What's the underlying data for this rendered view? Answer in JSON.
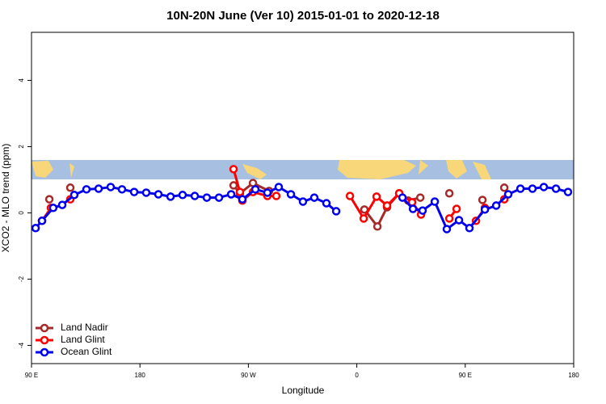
{
  "chart_data": {
    "type": "line",
    "title": "10N-20N June (Ver 10)   2015-01-01 to 2020-12-18",
    "x_label": "Longitude",
    "y_label": "XCO2 - MLO trend (ppm)",
    "xlim": [
      90,
      540
    ],
    "ylim": [
      -4.55,
      5.45
    ],
    "xticks": [
      {
        "value": 90,
        "label": "90 E"
      },
      {
        "value": 180,
        "label": "180"
      },
      {
        "value": 270,
        "label": "90 W"
      },
      {
        "value": 360,
        "label": "0"
      },
      {
        "value": 450,
        "label": "90 E"
      },
      {
        "value": 540,
        "label": "180"
      }
    ],
    "yticks": [
      -4,
      -2,
      0,
      2,
      4
    ],
    "legend": "bottom-left",
    "series": [
      {
        "name": "Land Nadir",
        "color": "#a52a2a",
        "x": [
          104.8,
          null,
          122.2,
          null,
          257.7,
          263.0,
          273.8,
          287.2,
          null,
          366.3,
          377.1,
          385.1,
          395.2,
          402.6,
          412.7,
          null,
          436.8,
          null,
          464.3,
          null,
          482.4
        ],
        "values": [
          0.41,
          null,
          0.76,
          null,
          0.83,
          0.59,
          0.9,
          0.66,
          null,
          0.1,
          -0.41,
          0.17,
          0.59,
          0.37,
          0.46,
          null,
          0.59,
          null,
          0.39,
          null,
          0.76
        ]
      },
      {
        "name": "Land Glint",
        "color": "#ff0000",
        "x": [
          98.7,
          106.1,
          null,
          122.2,
          null,
          257.7,
          263.0,
          265.0,
          273.8,
          285.8,
          293.2,
          null,
          354.3,
          365.7,
          376.4,
          385.1,
          395.2,
          405.9,
          413.3,
          null,
          436.8,
          442.8,
          null,
          458.9,
          466.3,
          null,
          482.4
        ],
        "values": [
          -0.24,
          0.15,
          null,
          0.41,
          null,
          1.32,
          0.63,
          0.37,
          0.63,
          0.51,
          0.51,
          null,
          0.51,
          -0.17,
          0.49,
          0.22,
          0.59,
          0.32,
          -0.05,
          null,
          -0.17,
          0.12,
          null,
          -0.24,
          0.15,
          null,
          0.41
        ]
      },
      {
        "name": "Ocean Glint",
        "color": "#0000ee",
        "x": [
          93.4,
          98.7,
          108.0,
          115.5,
          125.5,
          135.6,
          145.7,
          155.7,
          165.1,
          175.2,
          185.2,
          195.3,
          205.4,
          215.4,
          225.5,
          235.5,
          245.6,
          255.7,
          265.0,
          275.8,
          285.8,
          295.2,
          305.3,
          315.3,
          324.7,
          334.8,
          342.9,
          null,
          397.9,
          406.6,
          414.6,
          424.7,
          434.7,
          444.8,
          453.5,
          466.3,
          475.7,
          485.7,
          495.8,
          505.8,
          515.2,
          525.3,
          535.3
        ],
        "values": [
          -0.46,
          -0.24,
          0.15,
          0.24,
          0.54,
          0.71,
          0.73,
          0.78,
          0.71,
          0.63,
          0.61,
          0.56,
          0.49,
          0.54,
          0.51,
          0.46,
          0.46,
          0.56,
          0.41,
          0.71,
          0.61,
          0.78,
          0.56,
          0.34,
          0.46,
          0.29,
          0.05,
          null,
          0.46,
          0.12,
          0.07,
          0.34,
          -0.49,
          -0.22,
          -0.46,
          0.1,
          0.22,
          0.56,
          0.73,
          0.73,
          0.78,
          0.73,
          0.63
        ]
      }
    ]
  }
}
